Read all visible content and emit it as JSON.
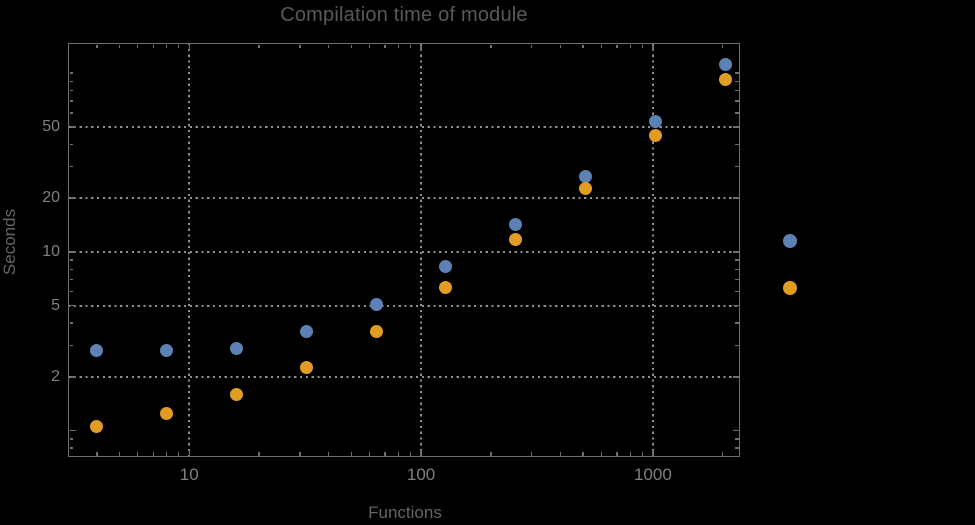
{
  "chart_data": {
    "type": "scatter",
    "title": "Compilation time of module",
    "xlabel": "Functions",
    "ylabel": "Seconds",
    "xscale": "log",
    "yscale": "log",
    "xlim": [
      3.0,
      2375
    ],
    "ylim": [
      0.713,
      147.5
    ],
    "grid": "dotted lines at labeled major ticks only",
    "x": [
      4,
      8,
      16,
      32,
      64,
      128,
      256,
      512,
      1024,
      2048
    ],
    "series": [
      {
        "name": "series-1-blue",
        "color": "#5e81b5",
        "values": [
          2.8,
          2.8,
          2.9,
          3.6,
          5.1,
          8.3,
          14.3,
          26.4,
          53.6,
          112
        ]
      },
      {
        "name": "series-2-orange",
        "color": "#e19c24",
        "values": [
          1.05,
          1.25,
          1.6,
          2.25,
          3.6,
          6.3,
          11.7,
          22.5,
          44.7,
          92
        ]
      }
    ],
    "x_ticks": {
      "major": [
        10,
        100,
        1000
      ],
      "labels": [
        "10",
        "100",
        "1000"
      ],
      "minor": [
        4,
        5,
        6,
        7,
        8,
        9,
        20,
        30,
        40,
        50,
        60,
        70,
        80,
        90,
        200,
        300,
        400,
        500,
        600,
        700,
        800,
        900,
        2000
      ]
    },
    "y_ticks": {
      "major": [
        2,
        5,
        10,
        20,
        50
      ],
      "labels": [
        "2",
        "5",
        "10",
        "20",
        "50"
      ],
      "unlabeled_major": [
        1
      ],
      "minor": [
        0.8,
        0.9,
        3,
        4,
        6,
        7,
        8,
        9,
        30,
        40,
        60,
        70,
        80,
        90,
        100
      ]
    },
    "grid_x": [
      10,
      100,
      1000
    ],
    "grid_y": [
      2,
      5,
      10,
      20,
      50
    ],
    "legend": {
      "position": "outside-right",
      "note_visible_text": "",
      "markers": [
        {
          "name": "legend-marker-series-1",
          "color": "#5e81b5"
        },
        {
          "name": "legend-marker-series-2",
          "color": "#e19c24"
        }
      ]
    }
  },
  "colors": {
    "background": "#000000",
    "frame": "#6f6f6f",
    "grid": "#8f8f8f",
    "title": "#58595b",
    "tick_label": "#7f8081",
    "axis_label": "#646567",
    "series_1": "#5e81b5",
    "series_2": "#e19c24"
  }
}
